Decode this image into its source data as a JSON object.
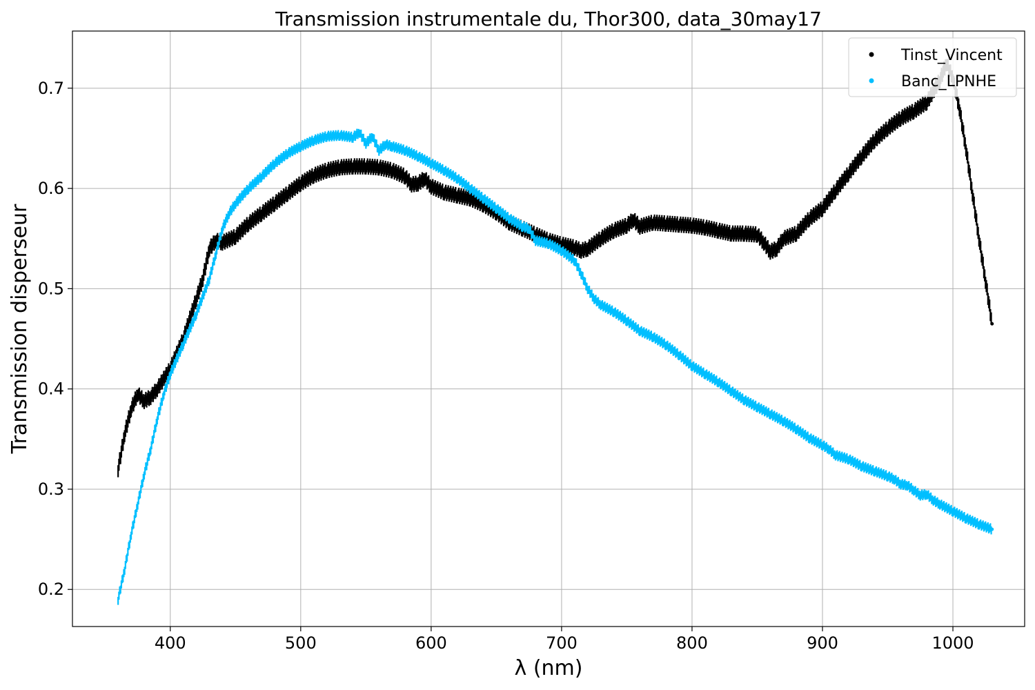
{
  "chart_data": {
    "type": "scatter",
    "title": "Transmission instrumentale du, Thor300, data_30may17",
    "xlabel": "λ (nm)",
    "ylabel": "Transmission disperseur",
    "xlim": [
      325,
      1055
    ],
    "ylim": [
      0.163,
      0.757
    ],
    "xticks": [
      400,
      500,
      600,
      700,
      800,
      900,
      1000
    ],
    "yticks": [
      0.2,
      0.3,
      0.4,
      0.5,
      0.6,
      0.7
    ],
    "grid": true,
    "legend_position": "top-right",
    "series": [
      {
        "name": "Tinst_Vincent",
        "color": "#000000",
        "band": 0.006,
        "points": [
          [
            360,
            0.32
          ],
          [
            365,
            0.355
          ],
          [
            370,
            0.38
          ],
          [
            375,
            0.395
          ],
          [
            380,
            0.388
          ],
          [
            385,
            0.392
          ],
          [
            390,
            0.4
          ],
          [
            400,
            0.42
          ],
          [
            410,
            0.45
          ],
          [
            420,
            0.49
          ],
          [
            425,
            0.51
          ],
          [
            430,
            0.54
          ],
          [
            435,
            0.548
          ],
          [
            440,
            0.546
          ],
          [
            450,
            0.552
          ],
          [
            460,
            0.565
          ],
          [
            470,
            0.575
          ],
          [
            480,
            0.585
          ],
          [
            490,
            0.595
          ],
          [
            500,
            0.605
          ],
          [
            510,
            0.613
          ],
          [
            520,
            0.618
          ],
          [
            530,
            0.621
          ],
          [
            540,
            0.622
          ],
          [
            550,
            0.622
          ],
          [
            560,
            0.621
          ],
          [
            570,
            0.618
          ],
          [
            580,
            0.612
          ],
          [
            585,
            0.604
          ],
          [
            590,
            0.605
          ],
          [
            595,
            0.61
          ],
          [
            600,
            0.602
          ],
          [
            610,
            0.596
          ],
          [
            620,
            0.593
          ],
          [
            630,
            0.59
          ],
          [
            640,
            0.584
          ],
          [
            650,
            0.576
          ],
          [
            660,
            0.566
          ],
          [
            670,
            0.56
          ],
          [
            680,
            0.554
          ],
          [
            690,
            0.548
          ],
          [
            700,
            0.544
          ],
          [
            710,
            0.541
          ],
          [
            715,
            0.538
          ],
          [
            720,
            0.54
          ],
          [
            730,
            0.55
          ],
          [
            740,
            0.558
          ],
          [
            750,
            0.563
          ],
          [
            755,
            0.569
          ],
          [
            760,
            0.562
          ],
          [
            770,
            0.566
          ],
          [
            780,
            0.565
          ],
          [
            790,
            0.564
          ],
          [
            800,
            0.563
          ],
          [
            810,
            0.561
          ],
          [
            820,
            0.558
          ],
          [
            830,
            0.555
          ],
          [
            840,
            0.555
          ],
          [
            850,
            0.554
          ],
          [
            855,
            0.546
          ],
          [
            860,
            0.537
          ],
          [
            865,
            0.54
          ],
          [
            870,
            0.55
          ],
          [
            880,
            0.555
          ],
          [
            890,
            0.57
          ],
          [
            900,
            0.58
          ],
          [
            910,
            0.598
          ],
          [
            920,
            0.615
          ],
          [
            930,
            0.632
          ],
          [
            940,
            0.648
          ],
          [
            950,
            0.66
          ],
          [
            960,
            0.67
          ],
          [
            970,
            0.677
          ],
          [
            980,
            0.686
          ],
          [
            990,
            0.708
          ],
          [
            995,
            0.725
          ],
          [
            1000,
            0.71
          ],
          [
            1005,
            0.68
          ],
          [
            1010,
            0.64
          ],
          [
            1015,
            0.595
          ],
          [
            1020,
            0.55
          ],
          [
            1025,
            0.508
          ],
          [
            1030,
            0.465
          ]
        ]
      },
      {
        "name": "Banc_LPNHE",
        "color": "#00bfff",
        "band": 0.004,
        "points": [
          [
            360,
            0.19
          ],
          [
            365,
            0.22
          ],
          [
            370,
            0.255
          ],
          [
            375,
            0.285
          ],
          [
            380,
            0.315
          ],
          [
            385,
            0.34
          ],
          [
            390,
            0.37
          ],
          [
            395,
            0.395
          ],
          [
            400,
            0.415
          ],
          [
            410,
            0.445
          ],
          [
            420,
            0.475
          ],
          [
            430,
            0.51
          ],
          [
            435,
            0.535
          ],
          [
            440,
            0.56
          ],
          [
            445,
            0.575
          ],
          [
            450,
            0.585
          ],
          [
            460,
            0.6
          ],
          [
            470,
            0.612
          ],
          [
            480,
            0.625
          ],
          [
            490,
            0.635
          ],
          [
            500,
            0.642
          ],
          [
            510,
            0.648
          ],
          [
            520,
            0.652
          ],
          [
            530,
            0.653
          ],
          [
            540,
            0.651
          ],
          [
            545,
            0.656
          ],
          [
            550,
            0.645
          ],
          [
            555,
            0.652
          ],
          [
            560,
            0.638
          ],
          [
            565,
            0.644
          ],
          [
            570,
            0.642
          ],
          [
            580,
            0.638
          ],
          [
            590,
            0.632
          ],
          [
            600,
            0.625
          ],
          [
            610,
            0.618
          ],
          [
            620,
            0.61
          ],
          [
            630,
            0.6
          ],
          [
            640,
            0.59
          ],
          [
            650,
            0.58
          ],
          [
            660,
            0.57
          ],
          [
            670,
            0.562
          ],
          [
            675,
            0.56
          ],
          [
            680,
            0.548
          ],
          [
            690,
            0.545
          ],
          [
            700,
            0.538
          ],
          [
            710,
            0.528
          ],
          [
            715,
            0.515
          ],
          [
            720,
            0.5
          ],
          [
            725,
            0.49
          ],
          [
            730,
            0.484
          ],
          [
            740,
            0.477
          ],
          [
            750,
            0.468
          ],
          [
            760,
            0.458
          ],
          [
            770,
            0.452
          ],
          [
            780,
            0.444
          ],
          [
            790,
            0.434
          ],
          [
            800,
            0.423
          ],
          [
            810,
            0.415
          ],
          [
            820,
            0.407
          ],
          [
            830,
            0.398
          ],
          [
            840,
            0.389
          ],
          [
            850,
            0.382
          ],
          [
            860,
            0.375
          ],
          [
            870,
            0.368
          ],
          [
            880,
            0.36
          ],
          [
            890,
            0.351
          ],
          [
            900,
            0.344
          ],
          [
            905,
            0.34
          ],
          [
            910,
            0.334
          ],
          [
            920,
            0.33
          ],
          [
            930,
            0.323
          ],
          [
            940,
            0.318
          ],
          [
            950,
            0.313
          ],
          [
            955,
            0.31
          ],
          [
            960,
            0.305
          ],
          [
            965,
            0.304
          ],
          [
            970,
            0.299
          ],
          [
            975,
            0.294
          ],
          [
            980,
            0.295
          ],
          [
            985,
            0.289
          ],
          [
            990,
            0.285
          ],
          [
            1000,
            0.278
          ],
          [
            1010,
            0.271
          ],
          [
            1020,
            0.265
          ],
          [
            1030,
            0.26
          ]
        ]
      }
    ]
  }
}
